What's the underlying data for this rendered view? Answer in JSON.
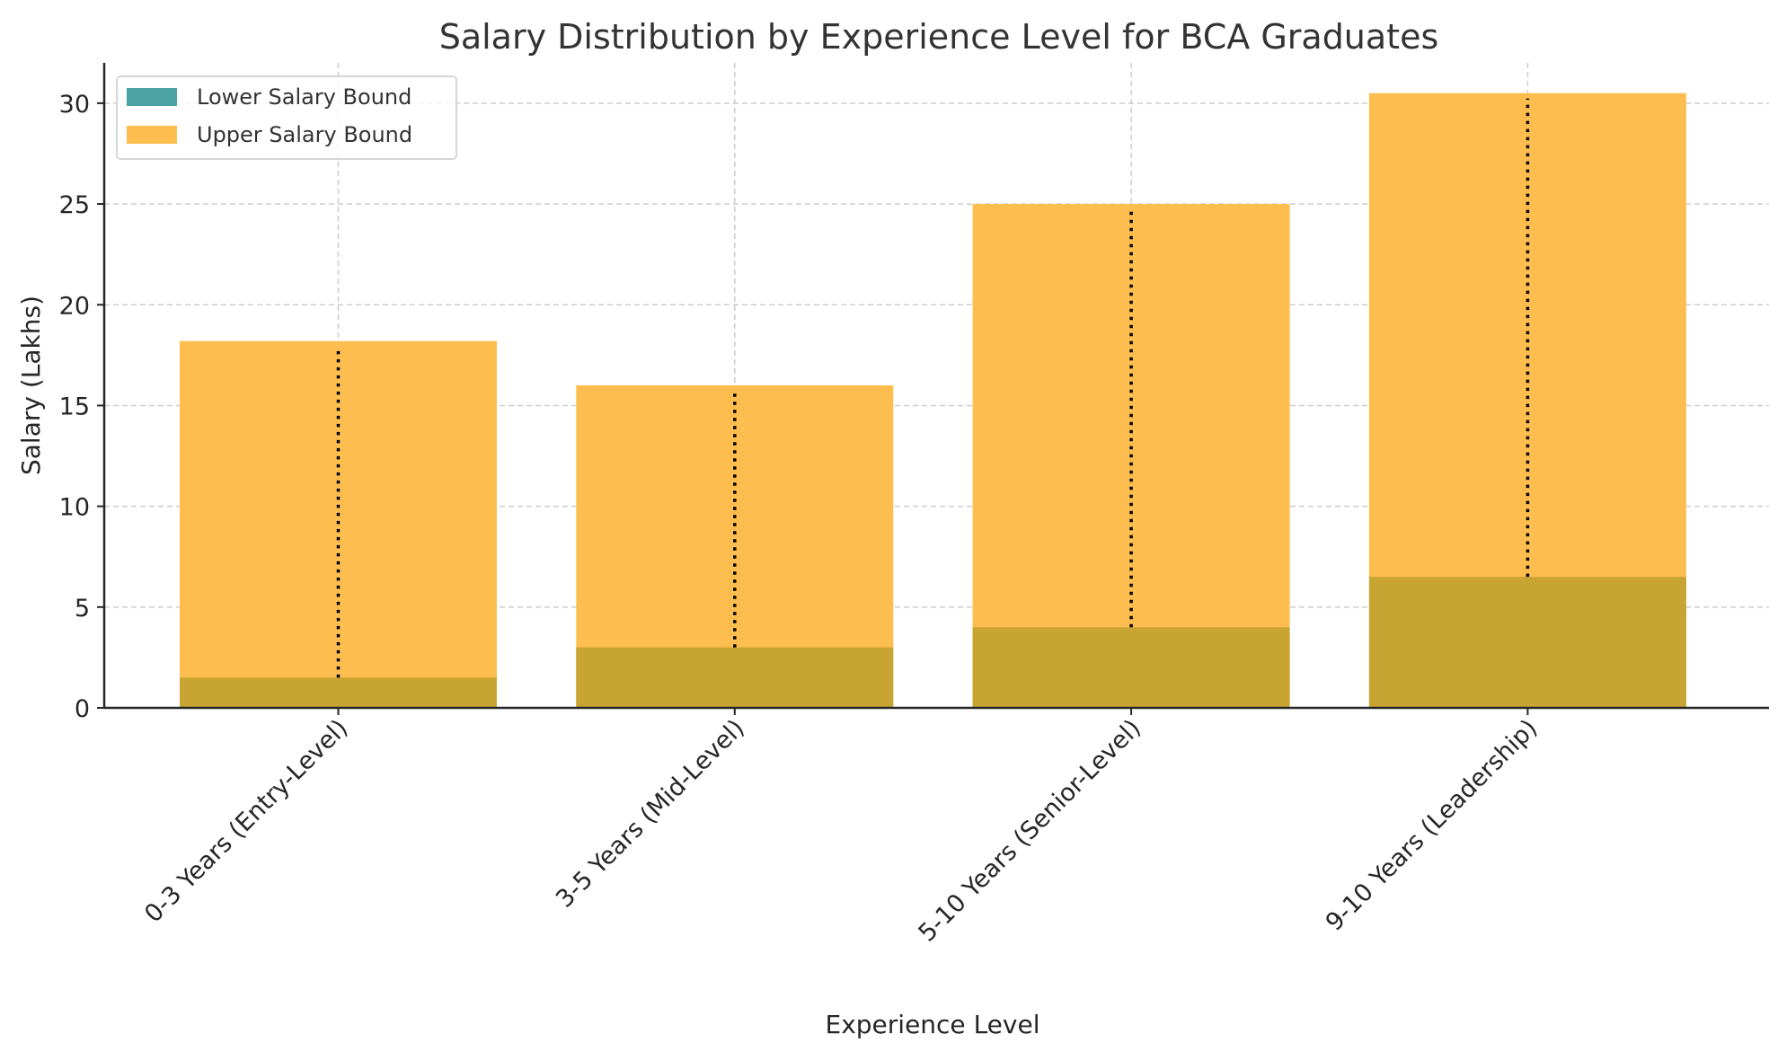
{
  "chart_data": {
    "type": "bar",
    "title": "Salary Distribution by Experience Level for BCA Graduates",
    "xlabel": "Experience Level",
    "ylabel": "Salary (Lakhs)",
    "categories": [
      "0-3 Years (Entry-Level)",
      "3-5 Years (Mid-Level)",
      "5-10 Years (Senior-Level)",
      "9-10 Years (Leadership)"
    ],
    "series": [
      {
        "name": "Lower Salary Bound",
        "values": [
          1.5,
          3.0,
          4.0,
          6.5
        ],
        "color": "#4aa3a2"
      },
      {
        "name": "Upper Salary Bound",
        "values": [
          18.2,
          16.0,
          25.0,
          30.5
        ],
        "color": "#fdbe4f"
      }
    ],
    "overlap_color": "#c8a533",
    "range_lines": {
      "style": "dotted",
      "color": "#000000",
      "from": "lower",
      "to": "upper"
    },
    "ylim": [
      0,
      32
    ],
    "yticks": [
      0,
      5,
      10,
      15,
      20,
      25,
      30
    ],
    "ytick_labels": [
      "0",
      "5",
      "10",
      "15",
      "20",
      "25",
      "30"
    ],
    "grid": true,
    "legend": {
      "placement": "top-left",
      "entries": [
        "Lower Salary Bound",
        "Upper Salary Bound"
      ]
    }
  }
}
